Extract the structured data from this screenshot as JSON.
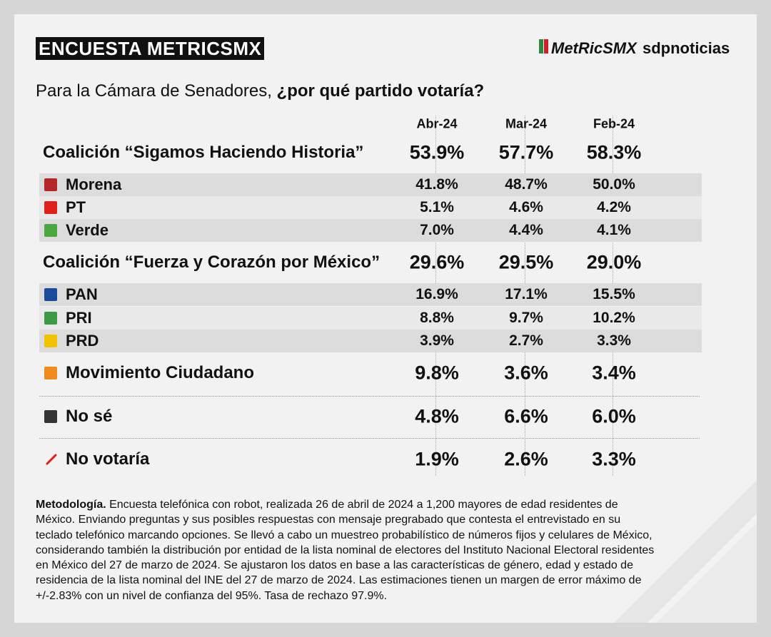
{
  "header": {
    "title": "ENCUESTA METRICSMX",
    "logo": "MetRicSMX",
    "brand": "sdpnoticias"
  },
  "question": {
    "normal": "Para la Cámara de Senadores, ",
    "bold": "¿por qué partido votaría?"
  },
  "table": {
    "columns": [
      "Abr-24",
      "Mar-24",
      "Feb-24"
    ],
    "rows": [
      {
        "label": "Coalición “Sigamos Haciendo Historia”",
        "kind": "coalition",
        "values": [
          "53.9%",
          "57.7%",
          "58.3%"
        ]
      },
      {
        "label": "Morena",
        "kind": "party",
        "color": "#b5262b",
        "values": [
          "41.8%",
          "48.7%",
          "50.0%"
        ]
      },
      {
        "label": "PT",
        "kind": "party",
        "color": "#e0201b",
        "values": [
          "5.1%",
          "4.6%",
          "4.2%"
        ]
      },
      {
        "label": "Verde",
        "kind": "party",
        "color": "#4aa83f",
        "values": [
          "7.0%",
          "4.4%",
          "4.1%"
        ]
      },
      {
        "label": "Coalición “Fuerza y Corazón por México”",
        "kind": "coalition",
        "values": [
          "29.6%",
          "29.5%",
          "29.0%"
        ]
      },
      {
        "label": "PAN",
        "kind": "party",
        "color": "#1c4b9c",
        "values": [
          "16.9%",
          "17.1%",
          "15.5%"
        ]
      },
      {
        "label": "PRI",
        "kind": "party",
        "color": "#3a9a47",
        "values": [
          "8.8%",
          "9.7%",
          "10.2%"
        ]
      },
      {
        "label": "PRD",
        "kind": "party",
        "color": "#f2c200",
        "values": [
          "3.9%",
          "2.7%",
          "3.3%"
        ]
      },
      {
        "label": "Movimiento Ciudadano",
        "kind": "other",
        "color": "#f08a1c",
        "values": [
          "9.8%",
          "3.6%",
          "3.4%"
        ]
      },
      {
        "label": "No sé",
        "kind": "other",
        "color": "#333333",
        "values": [
          "4.8%",
          "6.6%",
          "6.0%"
        ]
      },
      {
        "label": "No votaría",
        "kind": "other",
        "color": "#e0201b",
        "values": [
          "1.9%",
          "2.6%",
          "3.3%"
        ]
      }
    ]
  },
  "methodology": {
    "label": "Metodología.",
    "lines": [
      " Encuesta telefónica con robot, realizada 26 de abril de 2024 a 1,200 mayores de edad residentes de",
      "México. Enviando preguntas y sus posibles respuestas con mensaje pregrabado que contesta el entrevistado en su",
      "teclado telefónico marcando opciones. Se llevó a cabo un muestreo probabilístico de números fijos y celulares de México,",
      "considerando también la distribución por entidad de la lista nominal de electores del Instituto Nacional Electoral residentes",
      "en México del 27 de marzo de 2024. Se ajustaron los datos en base a las características de género, edad y estado de",
      "residencia de la lista nominal del INE del 27 de marzo de 2024. Las estimaciones tienen un margen de error máximo de",
      "+/-2.83% con un nivel de confianza del 95%. Tasa de rechazo 97.9%."
    ]
  }
}
